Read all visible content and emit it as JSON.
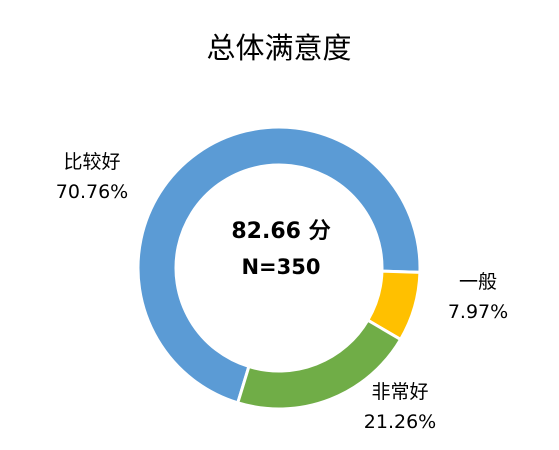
{
  "chart_data": {
    "type": "pie",
    "title": "总体满意度",
    "center_text": {
      "score": "82.66 分",
      "n": "N=350"
    },
    "categories": [
      "比较好",
      "一般",
      "非常好"
    ],
    "values": [
      70.76,
      7.97,
      21.26
    ],
    "value_labels": [
      "70.76%",
      "7.97%",
      "21.26%"
    ],
    "colors": [
      "#5B9BD5",
      "#FFC000",
      "#70AD47"
    ],
    "legend": "none"
  }
}
